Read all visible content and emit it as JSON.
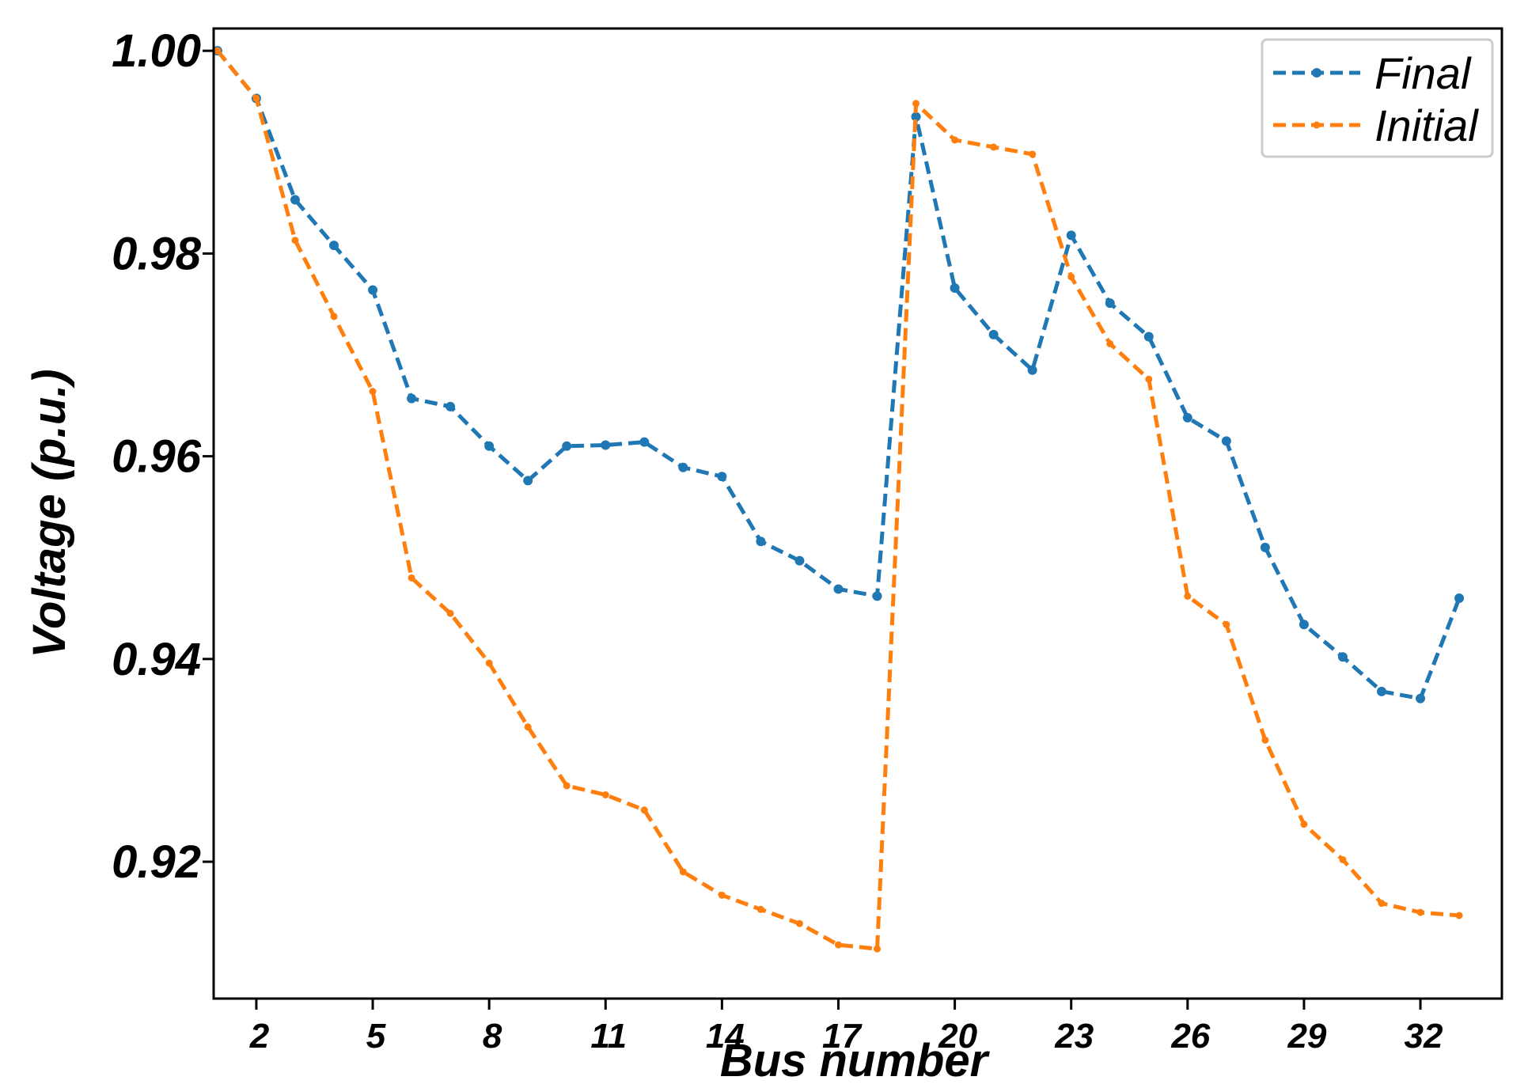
{
  "chart_data": {
    "type": "line",
    "xlabel": "Bus number",
    "ylabel": "Voltage (p.u.)",
    "xlim": [
      0.9,
      34.1
    ],
    "ylim": [
      0.9065,
      1.0022
    ],
    "xticks": [
      2,
      5,
      8,
      11,
      14,
      17,
      20,
      23,
      26,
      29,
      32
    ],
    "xtick_labels": [
      "2",
      "5",
      "8",
      "11",
      "14",
      "17",
      "20",
      "23",
      "26",
      "29",
      "32"
    ],
    "yticks": [
      0.92,
      0.94,
      0.96,
      0.98,
      1.0
    ],
    "ytick_labels": [
      "0.92",
      "0.94",
      "0.96",
      "0.98",
      "1.00"
    ],
    "legend_position": "top-right",
    "grid": false,
    "x": [
      1,
      2,
      3,
      4,
      5,
      6,
      7,
      8,
      9,
      10,
      11,
      12,
      13,
      14,
      15,
      16,
      17,
      18,
      19,
      20,
      21,
      22,
      23,
      24,
      25,
      26,
      27,
      28,
      29,
      30,
      31,
      32,
      33
    ],
    "series": [
      {
        "name": "Final",
        "color": "#1f77b4",
        "line_style": "dashed",
        "marker": "dot",
        "values": [
          1.0,
          0.9953,
          0.9853,
          0.9808,
          0.9764,
          0.9657,
          0.9649,
          0.961,
          0.9576,
          0.961,
          0.9611,
          0.9614,
          0.9589,
          0.958,
          0.9516,
          0.9497,
          0.9469,
          0.9462,
          0.9935,
          0.9766,
          0.972,
          0.9685,
          0.9818,
          0.9751,
          0.9718,
          0.9638,
          0.9615,
          0.951,
          0.9434,
          0.9402,
          0.9368,
          0.9361,
          0.946
        ]
      },
      {
        "name": "Initial",
        "color": "#ff7f0e",
        "line_style": "dashed",
        "marker": "small-dot",
        "values": [
          1.0,
          0.9953,
          0.9813,
          0.9738,
          0.9664,
          0.948,
          0.9445,
          0.9396,
          0.9333,
          0.9275,
          0.9266,
          0.9251,
          0.919,
          0.9167,
          0.9153,
          0.9139,
          0.9118,
          0.9114,
          0.9948,
          0.9912,
          0.9905,
          0.9898,
          0.9777,
          0.9711,
          0.9676,
          0.9462,
          0.9434,
          0.932,
          0.9237,
          0.9202,
          0.9159,
          0.915,
          0.9147
        ]
      }
    ]
  }
}
